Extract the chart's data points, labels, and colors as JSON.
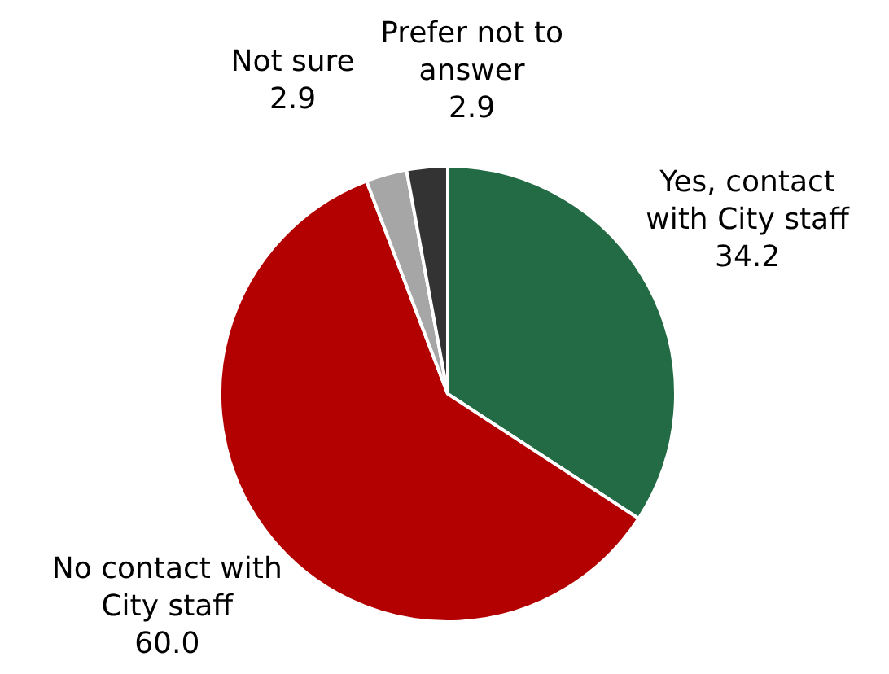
{
  "chart_data": {
    "type": "pie",
    "categories": [
      "Yes, contact with City staff",
      "No contact with City staff",
      "Not sure",
      "Prefer not to answer"
    ],
    "values": [
      34.2,
      60.0,
      2.9,
      2.9
    ],
    "value_labels": [
      "34.2",
      "60.0",
      "2.9",
      "2.9"
    ],
    "colors": [
      "#236b45",
      "#b30000",
      "#a6a6a6",
      "#333333"
    ],
    "legend": false
  }
}
